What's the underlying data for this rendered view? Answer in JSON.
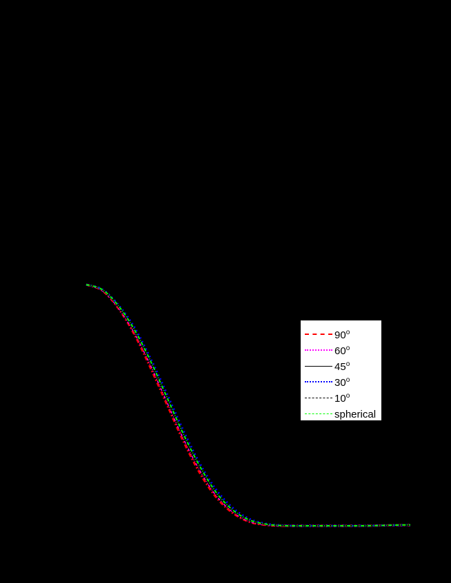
{
  "chart_data": {
    "type": "line",
    "title": "",
    "xlabel": "",
    "ylabel": "",
    "background": "#000000",
    "grid": false,
    "legend_position": "right-center",
    "x": [
      0,
      0.05,
      0.1,
      0.15,
      0.2,
      0.25,
      0.3,
      0.35,
      0.4,
      0.45,
      0.5,
      0.55,
      0.6,
      0.65,
      0.7,
      0.75,
      0.8,
      0.85,
      0.9,
      0.95,
      1.0
    ],
    "series": [
      {
        "name": "90°",
        "label": "90",
        "color": "#ff0000",
        "dash": "6,3,2,3",
        "values": [
          1.0,
          0.975,
          0.9,
          0.79,
          0.65,
          0.5,
          0.35,
          0.22,
          0.12,
          0.055,
          0.018,
          0.004,
          0.0,
          0.0,
          0.0,
          0.0,
          0.0,
          0.0,
          0.001,
          0.002,
          0.003
        ]
      },
      {
        "name": "60°",
        "label": "60",
        "color": "#ff00ff",
        "dash": "4,2,1,2,1,2",
        "values": [
          1.0,
          0.977,
          0.905,
          0.8,
          0.665,
          0.515,
          0.365,
          0.235,
          0.13,
          0.062,
          0.022,
          0.006,
          0.001,
          0.0,
          0.0,
          0.0,
          0.0,
          0.0,
          0.001,
          0.002,
          0.003
        ]
      },
      {
        "name": "45°",
        "label": "45",
        "color": "#000000",
        "dash": "",
        "values": [
          1.0,
          0.978,
          0.908,
          0.805,
          0.672,
          0.522,
          0.372,
          0.24,
          0.135,
          0.065,
          0.024,
          0.007,
          0.001,
          0.0,
          0.0,
          0.0,
          0.0,
          0.0,
          0.001,
          0.002,
          0.003
        ]
      },
      {
        "name": "30°",
        "label": "30",
        "color": "#0000ff",
        "dash": "2,4",
        "values": [
          1.0,
          0.98,
          0.915,
          0.82,
          0.69,
          0.545,
          0.395,
          0.26,
          0.152,
          0.077,
          0.031,
          0.01,
          0.002,
          0.0,
          0.0,
          0.0,
          0.0,
          0.0,
          0.001,
          0.002,
          0.003
        ]
      },
      {
        "name": "10°",
        "label": "10",
        "color": "#000000",
        "dash": "3,2",
        "values": [
          1.0,
          0.978,
          0.91,
          0.808,
          0.676,
          0.527,
          0.377,
          0.245,
          0.138,
          0.067,
          0.025,
          0.007,
          0.001,
          0.0,
          0.0,
          0.0,
          0.0,
          0.0,
          0.001,
          0.002,
          0.003
        ]
      },
      {
        "name": "spherical",
        "label": "spherical",
        "color": "#00ff00",
        "dash": "5,2,1,2",
        "values": [
          1.0,
          0.979,
          0.911,
          0.81,
          0.679,
          0.53,
          0.38,
          0.248,
          0.14,
          0.068,
          0.026,
          0.008,
          0.001,
          0.0,
          0.0,
          0.0,
          0.0,
          0.0,
          0.001,
          0.003,
          0.004
        ]
      }
    ],
    "ylim": [
      0,
      1
    ],
    "xlim": [
      0,
      1
    ]
  },
  "legend": {
    "items": [
      {
        "label": "90",
        "suffix": "o",
        "color": "#ff0000"
      },
      {
        "label": "60",
        "suffix": "o",
        "color": "#ff00ff"
      },
      {
        "label": "45",
        "suffix": "o",
        "color": "#000000"
      },
      {
        "label": "30",
        "suffix": "o",
        "color": "#0000ff"
      },
      {
        "label": "10",
        "suffix": "o",
        "color": "#000000"
      },
      {
        "label": "spherical",
        "suffix": "",
        "color": "#00ff00"
      }
    ]
  }
}
